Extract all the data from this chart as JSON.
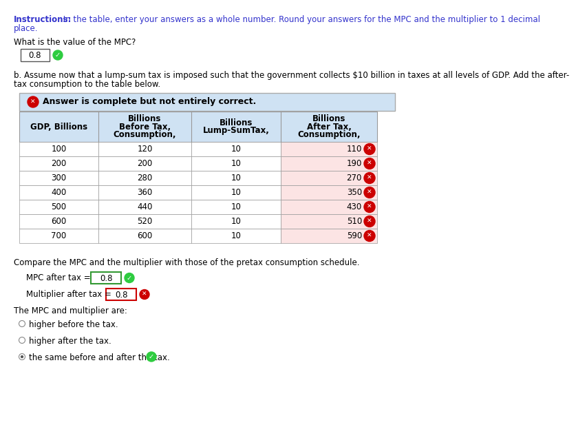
{
  "instructions_bold": "Instructions:",
  "instructions_rest": " In the table, enter your answers as a whole number. Round your answers for the MPC and the multiplier to 1 decimal",
  "instructions_line2": "place.",
  "mpc_question": "What is the value of the MPC?",
  "mpc_value": "0.8",
  "part_b_line1": "b. Assume now that a lump-sum tax is imposed such that the government collects $10 billion in taxes at all levels of GDP. Add the after-",
  "part_b_line2": "tax consumption to the table below.",
  "answer_banner": "Answer is complete but not entirely correct.",
  "table_headers": [
    "GDP, Billions",
    "Consumption,\nBefore Tax,\nBillions",
    "Lump-SumTax,\nBillions",
    "Consumption,\nAfter Tax,\nBillions"
  ],
  "table_data": [
    [
      100,
      120,
      10,
      110
    ],
    [
      200,
      200,
      10,
      190
    ],
    [
      300,
      280,
      10,
      270
    ],
    [
      400,
      360,
      10,
      350
    ],
    [
      500,
      440,
      10,
      430
    ],
    [
      600,
      520,
      10,
      510
    ],
    [
      700,
      600,
      10,
      590
    ]
  ],
  "after_tax_wrong": [
    true,
    true,
    true,
    true,
    true,
    true,
    true
  ],
  "compare_text": "Compare the MPC and the multiplier with those of the pretax consumption schedule.",
  "mpc_after_label": "MPC after tax =",
  "mpc_after_value": "0.8",
  "mpc_after_correct": true,
  "multiplier_after_label": "Multiplier after tax =",
  "multiplier_after_value": "0.8",
  "multiplier_after_correct": false,
  "radio_question": "The MPC and multiplier are:",
  "radio_options": [
    "higher before the tax.",
    "higher after the tax.",
    "the same before and after the tax."
  ],
  "radio_selected": 2,
  "header_bg": "#cfe2f3",
  "table_border": "#999999",
  "answer_bg": "#cfe2f3",
  "wrong_cell_bg": "#fce4e4",
  "instructions_color": "#3333cc",
  "text_color": "#000000",
  "font_size": 8.5,
  "table_font_size": 8.5
}
